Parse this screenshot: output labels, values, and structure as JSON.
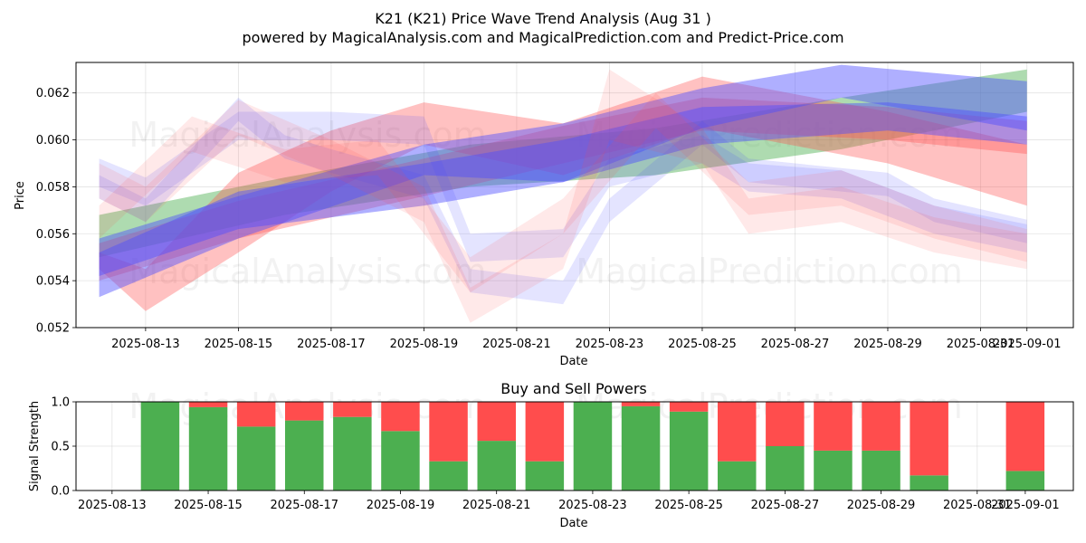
{
  "header": {
    "title": "K21 (K21) Price Wave Trend Analysis (Aug 31 )",
    "subtitle": "powered by MagicalAnalysis.com and MagicalPrediction.com and Predict-Price.com"
  },
  "watermarks": [
    "MagicalAnalysis.com",
    "MagicalPrediction.com"
  ],
  "chart_data": [
    {
      "type": "area",
      "title": "",
      "xlabel": "Date",
      "ylabel": "Price",
      "xlim": [
        "2025-08-11T12:00",
        "2025-09-02T00:00"
      ],
      "ylim": [
        0.052,
        0.0633
      ],
      "x_ticks": [
        "2025-08-13",
        "2025-08-15",
        "2025-08-17",
        "2025-08-19",
        "2025-08-21",
        "2025-08-23",
        "2025-08-25",
        "2025-08-27",
        "2025-08-29",
        "2025-08-31",
        "2025-09-01"
      ],
      "y_ticks": [
        0.052,
        0.054,
        0.056,
        0.058,
        0.06,
        0.062
      ],
      "grid": true,
      "colors": {
        "green": "#4caf50",
        "red": "#ff4d4d",
        "blue": "#4d4dff"
      },
      "series": [
        {
          "color": "green",
          "opacity": 0.45,
          "x": [
            "2025-08-12",
            "2025-08-16",
            "2025-08-20",
            "2025-08-24",
            "2025-08-28",
            "2025-09-01"
          ],
          "lower": [
            0.055,
            0.0568,
            0.058,
            0.0585,
            0.0596,
            0.0612
          ],
          "upper": [
            0.0568,
            0.0584,
            0.0598,
            0.0605,
            0.0618,
            0.063
          ]
        },
        {
          "color": "red",
          "opacity": 0.35,
          "x": [
            "2025-08-12",
            "2025-08-13",
            "2025-08-15",
            "2025-08-17",
            "2025-08-19",
            "2025-08-22",
            "2025-08-25",
            "2025-08-29",
            "2025-09-01"
          ],
          "lower": [
            0.0545,
            0.0527,
            0.0552,
            0.0578,
            0.0598,
            0.0585,
            0.0605,
            0.059,
            0.0572
          ],
          "upper": [
            0.0552,
            0.0545,
            0.0586,
            0.0604,
            0.0616,
            0.0607,
            0.0627,
            0.0612,
            0.0598
          ]
        },
        {
          "color": "red",
          "opacity": 0.35,
          "x": [
            "2025-08-12",
            "2025-08-15",
            "2025-08-19",
            "2025-08-22",
            "2025-08-25",
            "2025-08-29",
            "2025-09-01"
          ],
          "lower": [
            0.054,
            0.0558,
            0.0576,
            0.059,
            0.0604,
            0.06,
            0.0594
          ],
          "upper": [
            0.0556,
            0.0574,
            0.0592,
            0.0606,
            0.0618,
            0.0614,
            0.0608
          ]
        },
        {
          "color": "blue",
          "opacity": 0.45,
          "x": [
            "2025-08-12",
            "2025-08-15",
            "2025-08-19",
            "2025-08-22",
            "2025-08-25",
            "2025-08-28",
            "2025-09-01"
          ],
          "lower": [
            0.0533,
            0.0558,
            0.0585,
            0.0582,
            0.0605,
            0.0618,
            0.0604
          ],
          "upper": [
            0.0558,
            0.0576,
            0.0598,
            0.0607,
            0.0622,
            0.0632,
            0.0625
          ]
        },
        {
          "color": "blue",
          "opacity": 0.45,
          "x": [
            "2025-08-12",
            "2025-08-15",
            "2025-08-19",
            "2025-08-22",
            "2025-08-25",
            "2025-08-29",
            "2025-09-01"
          ],
          "lower": [
            0.0542,
            0.0562,
            0.0572,
            0.0582,
            0.0598,
            0.0604,
            0.0598
          ],
          "upper": [
            0.0552,
            0.0578,
            0.059,
            0.06,
            0.0614,
            0.0616,
            0.061
          ]
        },
        {
          "color": "blue",
          "opacity": 0.15,
          "x": [
            "2025-08-12",
            "2025-08-13",
            "2025-08-15",
            "2025-08-16",
            "2025-08-17",
            "2025-08-19",
            "2025-08-20",
            "2025-08-22",
            "2025-08-23",
            "2025-08-25",
            "2025-08-26",
            "2025-08-28",
            "2025-08-29",
            "2025-08-30",
            "2025-09-01"
          ],
          "lower": [
            0.0575,
            0.0565,
            0.0608,
            0.0592,
            0.0586,
            0.0575,
            0.0535,
            0.053,
            0.0565,
            0.0598,
            0.0582,
            0.0578,
            0.0576,
            0.0565,
            0.0556
          ],
          "upper": [
            0.0585,
            0.0575,
            0.0618,
            0.0602,
            0.0596,
            0.0585,
            0.0545,
            0.054,
            0.0575,
            0.0608,
            0.0592,
            0.0588,
            0.0586,
            0.0575,
            0.0566
          ]
        },
        {
          "color": "blue",
          "opacity": 0.15,
          "x": [
            "2025-08-12",
            "2025-08-13",
            "2025-08-15",
            "2025-08-17",
            "2025-08-19",
            "2025-08-20",
            "2025-08-22",
            "2025-08-23",
            "2025-08-25",
            "2025-08-26",
            "2025-08-28",
            "2025-08-30",
            "2025-09-01"
          ],
          "lower": [
            0.058,
            0.0572,
            0.06,
            0.06,
            0.0598,
            0.0548,
            0.055,
            0.058,
            0.059,
            0.0578,
            0.0575,
            0.056,
            0.0552
          ],
          "upper": [
            0.0592,
            0.0584,
            0.0612,
            0.0612,
            0.061,
            0.056,
            0.0562,
            0.0592,
            0.0602,
            0.059,
            0.0587,
            0.0572,
            0.0564
          ]
        },
        {
          "color": "red",
          "opacity": 0.12,
          "x": [
            "2025-08-12",
            "2025-08-13",
            "2025-08-15",
            "2025-08-17",
            "2025-08-19",
            "2025-08-20",
            "2025-08-22",
            "2025-08-23",
            "2025-08-25",
            "2025-08-26",
            "2025-08-28",
            "2025-08-30",
            "2025-09-01"
          ],
          "lower": [
            0.0575,
            0.0565,
            0.0602,
            0.0585,
            0.0565,
            0.0522,
            0.0545,
            0.06,
            0.059,
            0.056,
            0.0565,
            0.0552,
            0.0545
          ],
          "upper": [
            0.059,
            0.058,
            0.0617,
            0.06,
            0.058,
            0.0537,
            0.056,
            0.063,
            0.0605,
            0.0575,
            0.058,
            0.0567,
            0.056
          ]
        },
        {
          "color": "red",
          "opacity": 0.12,
          "x": [
            "2025-08-12",
            "2025-08-14",
            "2025-08-16",
            "2025-08-18",
            "2025-08-20",
            "2025-08-22",
            "2025-08-24",
            "2025-08-26",
            "2025-08-28",
            "2025-08-30",
            "2025-09-01"
          ],
          "lower": [
            0.0558,
            0.0595,
            0.0582,
            0.0585,
            0.0535,
            0.056,
            0.0605,
            0.0568,
            0.0572,
            0.0558,
            0.0548
          ],
          "upper": [
            0.0572,
            0.061,
            0.0596,
            0.06,
            0.055,
            0.0575,
            0.062,
            0.0582,
            0.0587,
            0.0572,
            0.0562
          ]
        }
      ]
    },
    {
      "type": "bar",
      "title": "Buy and Sell Powers",
      "xlabel": "Date",
      "ylabel": "Signal Strength",
      "xlim": [
        "2025-08-12T06:00",
        "2025-09-02T00:00"
      ],
      "ylim": [
        0,
        1.0
      ],
      "y_ticks": [
        0.0,
        0.5,
        1.0
      ],
      "x_ticks": [
        "2025-08-13",
        "2025-08-15",
        "2025-08-17",
        "2025-08-19",
        "2025-08-21",
        "2025-08-23",
        "2025-08-25",
        "2025-08-27",
        "2025-08-29",
        "2025-08-31",
        "2025-09-01"
      ],
      "grid": true,
      "categories": [
        "2025-08-14",
        "2025-08-15",
        "2025-08-16",
        "2025-08-17",
        "2025-08-18",
        "2025-08-19",
        "2025-08-20",
        "2025-08-21",
        "2025-08-22",
        "2025-08-23",
        "2025-08-24",
        "2025-08-25",
        "2025-08-26",
        "2025-08-27",
        "2025-08-28",
        "2025-08-29",
        "2025-08-30",
        "2025-09-01"
      ],
      "series": [
        {
          "role": "buy",
          "color": "#4caf50",
          "values": [
            1.0,
            0.94,
            0.72,
            0.79,
            0.83,
            0.67,
            0.33,
            0.56,
            0.33,
            1.0,
            0.95,
            0.89,
            0.33,
            0.5,
            0.45,
            0.45,
            0.17,
            0.22
          ]
        },
        {
          "role": "sell",
          "color": "#ff4d4d",
          "values": [
            0.0,
            0.06,
            0.28,
            0.21,
            0.17,
            0.33,
            0.67,
            0.44,
            0.67,
            0.0,
            0.05,
            0.11,
            0.67,
            0.5,
            0.55,
            0.55,
            0.83,
            0.78
          ]
        }
      ]
    }
  ]
}
